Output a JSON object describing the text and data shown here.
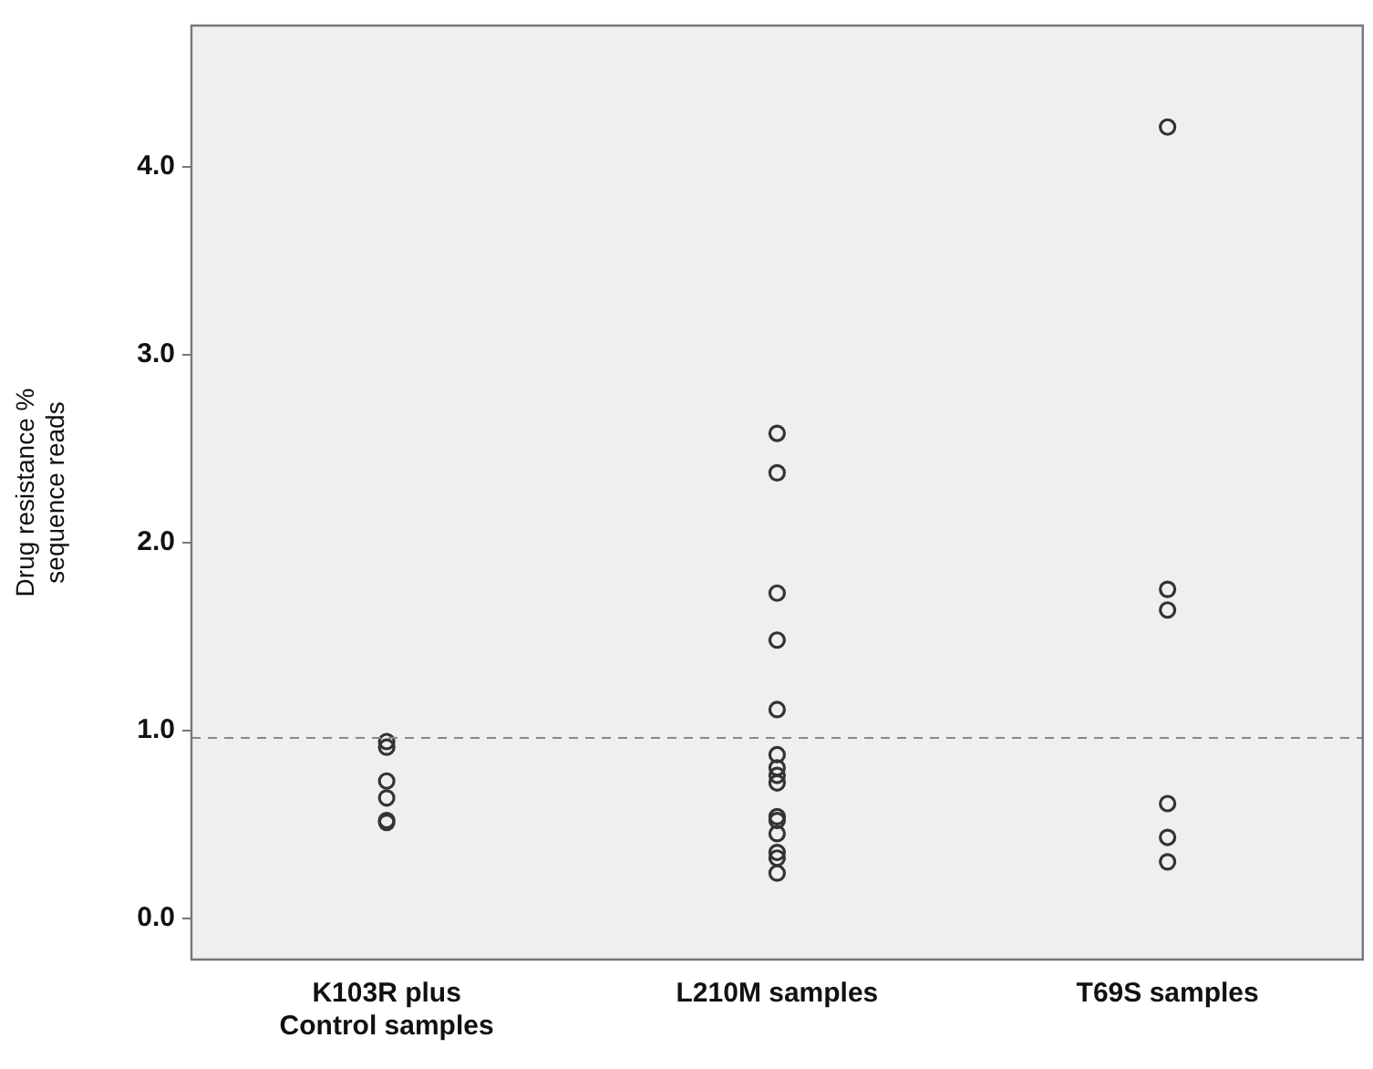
{
  "chart_data": {
    "type": "scatter",
    "ylabel": "Drug resistance %\nsequence reads",
    "categories": [
      "K103R plus\nControl samples",
      "L210M samples",
      "T69S samples"
    ],
    "series": [
      {
        "color": "#333333",
        "x": [
          "K103R plus\nControl samples",
          "K103R plus\nControl samples",
          "K103R plus\nControl samples",
          "K103R plus\nControl samples",
          "K103R plus\nControl samples",
          "K103R plus\nControl samples",
          "L210M samples",
          "L210M samples",
          "L210M samples",
          "L210M samples",
          "L210M samples",
          "L210M samples",
          "L210M samples",
          "L210M samples",
          "L210M samples",
          "L210M samples",
          "L210M samples",
          "L210M samples",
          "L210M samples",
          "L210M samples",
          "L210M samples",
          "T69S samples",
          "T69S samples",
          "T69S samples",
          "T69S samples",
          "T69S samples",
          "T69S samples"
        ],
        "values": [
          0.94,
          0.91,
          0.73,
          0.64,
          0.52,
          0.51,
          2.58,
          2.37,
          1.73,
          1.48,
          1.11,
          0.87,
          0.8,
          0.76,
          0.72,
          0.54,
          0.52,
          0.45,
          0.35,
          0.32,
          0.24,
          4.21,
          1.75,
          1.64,
          0.61,
          0.43,
          0.3
        ]
      }
    ],
    "ylim": [
      -0.22,
      4.75
    ],
    "yticks": [
      {
        "value": 0,
        "label": "0.0"
      },
      {
        "value": 1,
        "label": "1.0"
      },
      {
        "value": 2,
        "label": "2.0"
      },
      {
        "value": 3,
        "label": "3.0"
      },
      {
        "value": 4,
        "label": "4.0"
      }
    ],
    "ref_lines": [
      {
        "axis": "y",
        "value": 0.96,
        "color": "#888888",
        "line_style": "dashed"
      }
    ],
    "marker": "circle",
    "grid": false,
    "legend": false
  }
}
